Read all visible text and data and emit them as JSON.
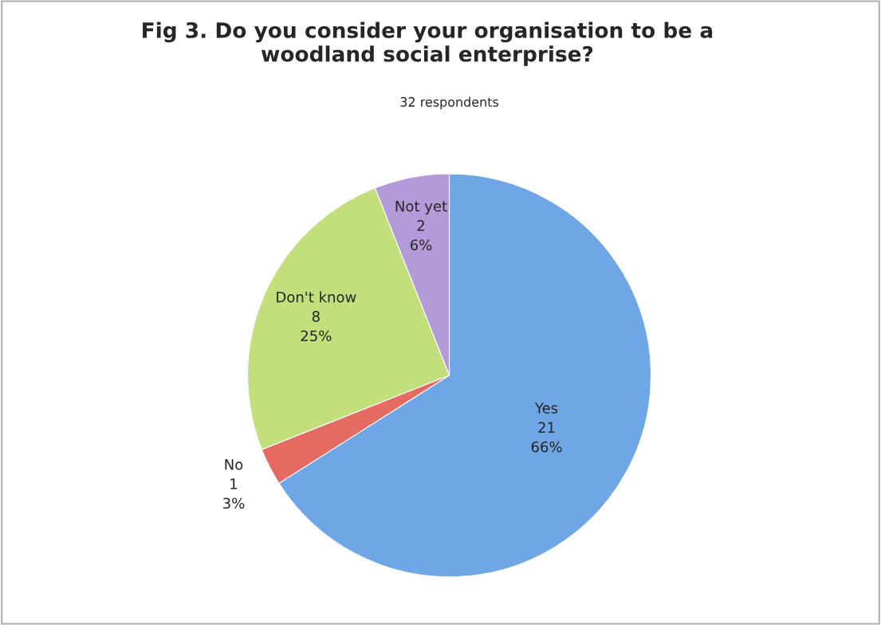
{
  "chart_data": {
    "type": "pie",
    "title": "Fig 3. Do you consider your organisation to be a woodland social enterprise?",
    "subtitle": "32 respondents",
    "categories": [
      "Yes",
      "No",
      "Don't know",
      "Not yet"
    ],
    "values": [
      66,
      3,
      25,
      6
    ],
    "value_labels": [
      "21\n66%",
      "1\n3%",
      "8\n25%",
      "2\n6%"
    ],
    "colors": [
      "#6ea6e6",
      "#e56a62",
      "#c3df7c",
      "#b39ad8"
    ]
  }
}
